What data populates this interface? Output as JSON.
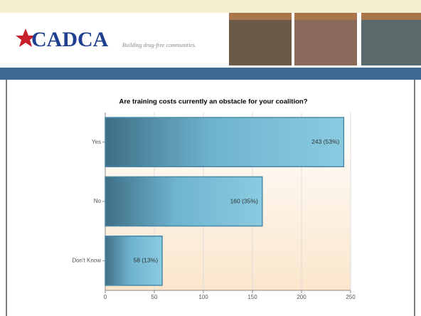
{
  "header": {
    "logo": "CADCA",
    "tagline": "Building drug-free communities."
  },
  "chart_data": {
    "type": "hbar",
    "title": "Are training costs currently an obstacle for your coalition?",
    "categories": [
      "Yes",
      "No",
      "Don't Know"
    ],
    "values": [
      243,
      160,
      58
    ],
    "value_labels": [
      "243 (53%)",
      "160 (35%)",
      "58 (13%)"
    ],
    "color": "#5aa3c0",
    "xlim": [
      0,
      250
    ],
    "xticks": [
      0,
      50,
      100,
      150,
      200,
      250
    ],
    "grid": true
  }
}
